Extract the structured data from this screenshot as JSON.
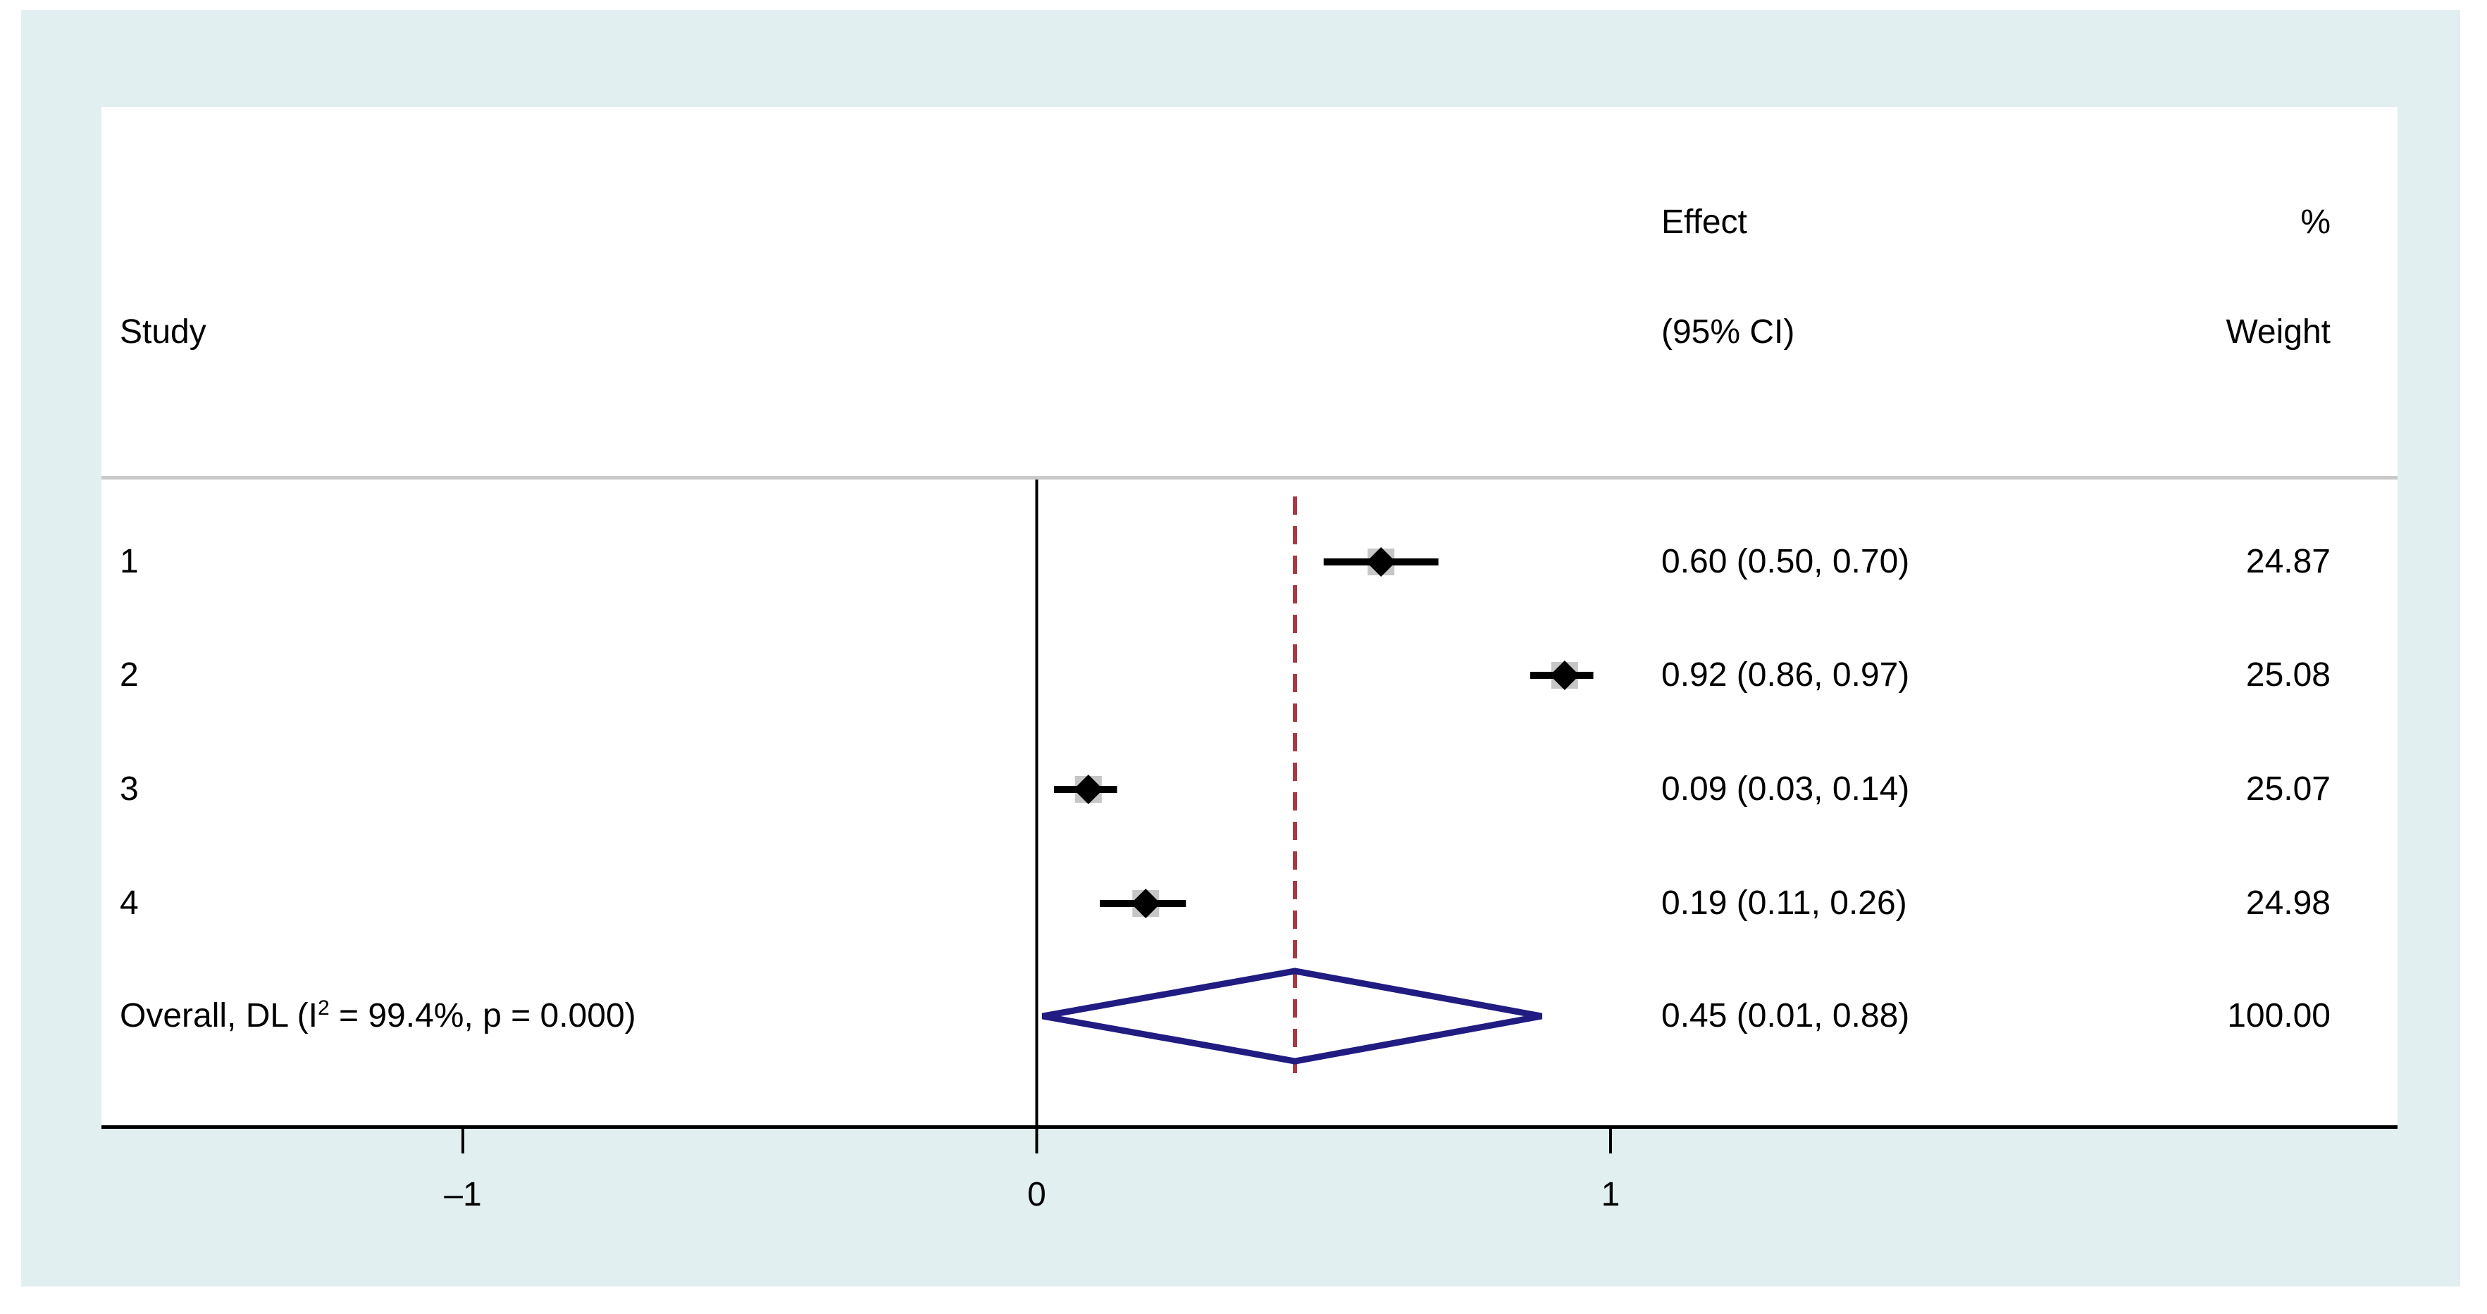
{
  "table_header": {
    "study": "Study",
    "effect_line1": "Effect",
    "effect_line2": "(95% CI)",
    "weight_line1": "%",
    "weight_line2": "Weight"
  },
  "chart_data": {
    "type": "forest",
    "studies": [
      {
        "label": "1",
        "effect": 0.6,
        "ci_low": 0.5,
        "ci_high": 0.7,
        "effect_text": "0.60 (0.50, 0.70)",
        "weight": 24.87,
        "weight_text": "24.87"
      },
      {
        "label": "2",
        "effect": 0.92,
        "ci_low": 0.86,
        "ci_high": 0.97,
        "effect_text": "0.92 (0.86, 0.97)",
        "weight": 25.08,
        "weight_text": "25.08"
      },
      {
        "label": "3",
        "effect": 0.09,
        "ci_low": 0.03,
        "ci_high": 0.14,
        "effect_text": "0.09 (0.03, 0.14)",
        "weight": 25.07,
        "weight_text": "25.07"
      },
      {
        "label": "4",
        "effect": 0.19,
        "ci_low": 0.11,
        "ci_high": 0.26,
        "effect_text": "0.19 (0.11, 0.26)",
        "weight": 24.98,
        "weight_text": "24.98"
      }
    ],
    "overall": {
      "label_prefix": "Overall, DL (I",
      "label_sup": "2",
      "label_suffix": " = 99.4%, p = 0.000)",
      "effect": 0.45,
      "ci_low": 0.01,
      "ci_high": 0.88,
      "effect_text": "0.45 (0.01, 0.88)",
      "weight": 100.0,
      "weight_text": "100.00"
    },
    "x_axis": {
      "ticks": [
        -1,
        0,
        1
      ],
      "tick_labels": [
        "–1",
        "0",
        "1"
      ],
      "zero_reference_line": 0,
      "overall_effect_line": 0.45,
      "xlim": [
        -1.63,
        1.37
      ]
    },
    "legend": null,
    "grid": "off"
  },
  "colors": {
    "figure_background": "#e2eff0",
    "panel_background": "#ffffff",
    "divider_gray": "#c9c9c9",
    "axis_black": "#000000",
    "ci_marker_black": "#000000",
    "weight_box_gray": "#c6c6c6",
    "overall_diamond_navy": "#201c82",
    "overall_dashed_red": "#a93a44",
    "text_black": "#000000"
  }
}
